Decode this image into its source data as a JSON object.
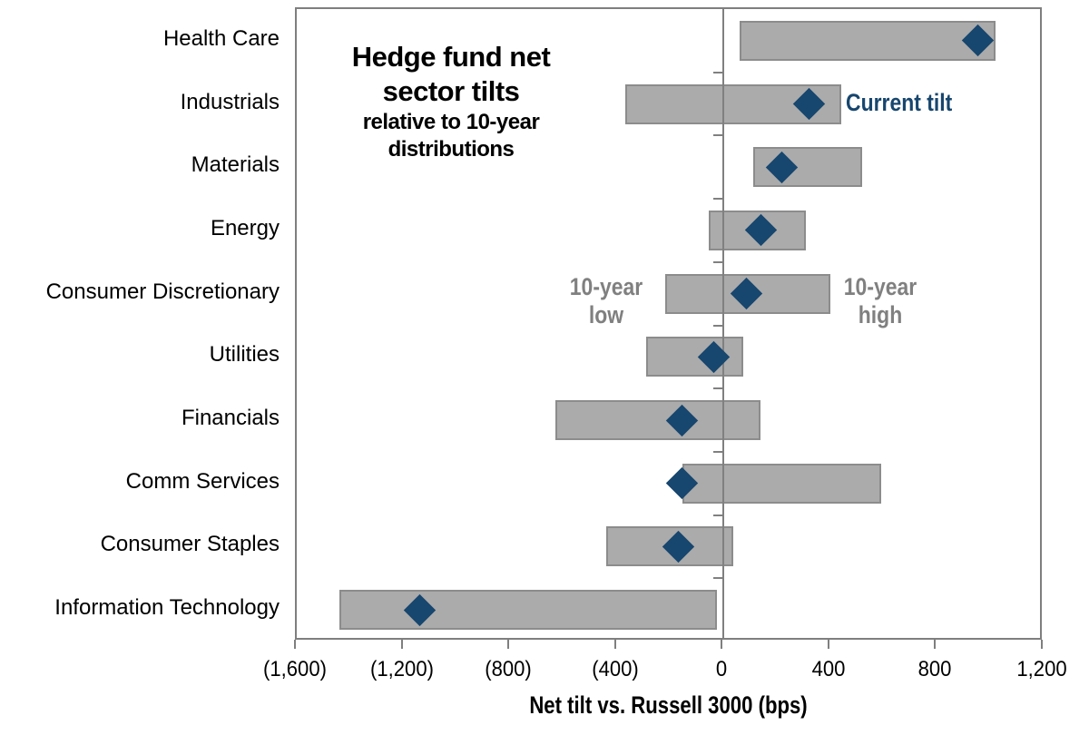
{
  "chart_data": {
    "type": "bar",
    "subtype": "horizontal-range-bars-with-marker",
    "title_lines": [
      "Hedge fund net",
      "sector tilts"
    ],
    "subtitle_lines": [
      "relative to 10-year",
      "distributions"
    ],
    "xlabel": "Net tilt vs. Russell 3000 (bps)",
    "xlim": [
      -1600,
      1200
    ],
    "x_tick_values": [
      -1600,
      -1200,
      -800,
      -400,
      0,
      400,
      800,
      1200
    ],
    "x_ticks": [
      "(1,600)",
      "(1,200)",
      "(800)",
      "(400)",
      "0",
      "400",
      "800",
      "1,200"
    ],
    "grid": false,
    "legend": {
      "current": "Current tilt",
      "low_lines": [
        "10-year",
        "low"
      ],
      "high_lines": [
        "10-year",
        "high"
      ]
    },
    "categories": [
      "Health Care",
      "Industrials",
      "Materials",
      "Energy",
      "Consumer Discretionary",
      "Utilities",
      "Financials",
      "Comm Services",
      "Consumer Staples",
      "Information Technology"
    ],
    "series": [
      {
        "name": "10-year low",
        "values": [
          60,
          -370,
          110,
          -55,
          -220,
          -290,
          -630,
          -155,
          -440,
          -1440
        ]
      },
      {
        "name": "10-year high",
        "values": [
          1020,
          440,
          520,
          310,
          400,
          75,
          140,
          590,
          35,
          -25
        ]
      },
      {
        "name": "Current tilt",
        "values": [
          955,
          320,
          220,
          140,
          85,
          -35,
          -155,
          -155,
          -170,
          -1140
        ]
      }
    ],
    "colors": {
      "bar_fill": "#ABABAB",
      "bar_border": "#8C8C8C",
      "marker_navy": "#17466E",
      "axis_gray": "#7F7F7F",
      "zero_line_gray": "#808080",
      "label_gray": "#808080",
      "text_black": "#000000"
    }
  }
}
